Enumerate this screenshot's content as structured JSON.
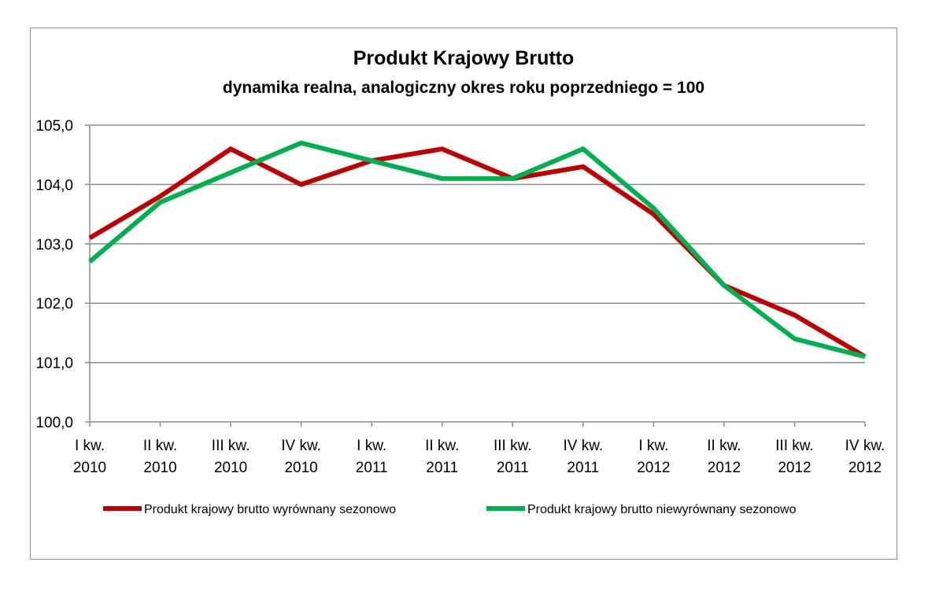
{
  "chart_data": {
    "type": "line",
    "title": "Produkt Krajowy Brutto",
    "subtitle": "dynamika realna, analogiczny okres roku poprzedniego = 100",
    "categories": [
      [
        "I kw.",
        "2010"
      ],
      [
        "II kw.",
        "2010"
      ],
      [
        "III kw.",
        "2010"
      ],
      [
        "IV kw.",
        "2010"
      ],
      [
        "I kw.",
        "2011"
      ],
      [
        "II kw.",
        "2011"
      ],
      [
        "III kw.",
        "2011"
      ],
      [
        "IV kw.",
        "2011"
      ],
      [
        "I kw.",
        "2012"
      ],
      [
        "II kw.",
        "2012"
      ],
      [
        "III kw.",
        "2012"
      ],
      [
        "IV kw.",
        "2012"
      ]
    ],
    "y_ticks": [
      "100,0",
      "101,0",
      "102,0",
      "103,0",
      "104,0",
      "105,0"
    ],
    "ylim": [
      100,
      105
    ],
    "grid": true,
    "legend_position": "bottom",
    "series": [
      {
        "name": "Produkt krajowy brutto wyrównany sezonowo",
        "color": "#c00000",
        "values": [
          103.1,
          103.8,
          104.6,
          104.0,
          104.4,
          104.6,
          104.1,
          104.3,
          103.5,
          102.3,
          101.8,
          101.1
        ]
      },
      {
        "name": "Produkt krajowy brutto niewyrównany sezonowo",
        "color": "#00b050",
        "values": [
          102.7,
          103.7,
          104.2,
          104.7,
          104.4,
          104.1,
          104.1,
          104.6,
          103.6,
          102.3,
          101.4,
          101.1
        ]
      }
    ]
  }
}
